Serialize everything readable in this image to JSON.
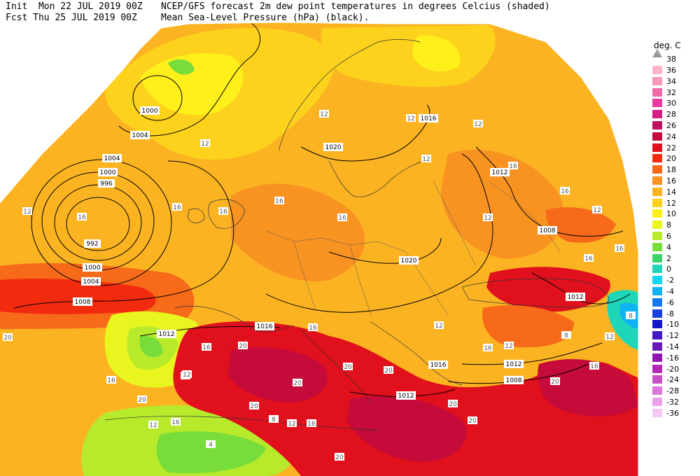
{
  "header": {
    "line1_left": "Init  Mon 22 JUL 2019 00Z",
    "line1_right": "NCEP/GFS forecast 2m dew point temperatures in degrees Celcius (shaded)",
    "line2_left": "Fcst Thu 25 JUL 2019 00Z",
    "line2_right": "Mean Sea-Level Pressure (hPa) (black)."
  },
  "legend": {
    "title": "deg. C",
    "top_label": "38",
    "bins": [
      {
        "label": "36",
        "color": "#ffb3c6"
      },
      {
        "label": "34",
        "color": "#f79ab8"
      },
      {
        "label": "32",
        "color": "#f06aa8"
      },
      {
        "label": "30",
        "color": "#e83aa0"
      },
      {
        "label": "28",
        "color": "#d81c86"
      },
      {
        "label": "26",
        "color": "#bf0f62"
      },
      {
        "label": "24",
        "color": "#c40b3a"
      },
      {
        "label": "22",
        "color": "#e0101c"
      },
      {
        "label": "20",
        "color": "#f22a0e"
      },
      {
        "label": "18",
        "color": "#f66a1a"
      },
      {
        "label": "16",
        "color": "#f89322"
      },
      {
        "label": "14",
        "color": "#fbb322"
      },
      {
        "label": "12",
        "color": "#fdd21c"
      },
      {
        "label": "10",
        "color": "#fff01c"
      },
      {
        "label": "8",
        "color": "#e8f51e"
      },
      {
        "label": "6",
        "color": "#b8ea2c"
      },
      {
        "label": "4",
        "color": "#78dc3a"
      },
      {
        "label": "2",
        "color": "#3cd468"
      },
      {
        "label": "0",
        "color": "#20d6b8"
      },
      {
        "label": "-2",
        "color": "#10d8f0"
      },
      {
        "label": "-4",
        "color": "#10b4f4"
      },
      {
        "label": "-6",
        "color": "#1478f0"
      },
      {
        "label": "-8",
        "color": "#1840e0"
      },
      {
        "label": "-10",
        "color": "#1414c8"
      },
      {
        "label": "-12",
        "color": "#4418c0"
      },
      {
        "label": "-14",
        "color": "#6a18b8"
      },
      {
        "label": "-16",
        "color": "#9018b0"
      },
      {
        "label": "-20",
        "color": "#b428b8"
      },
      {
        "label": "-24",
        "color": "#c850c8"
      },
      {
        "label": "-28",
        "color": "#dc78dc"
      },
      {
        "label": "-32",
        "color": "#eca0ec"
      },
      {
        "label": "-36",
        "color": "#f6c8f6"
      }
    ]
  },
  "map": {
    "isobar_labels": [
      {
        "text": "1000"
      },
      {
        "text": "1004"
      },
      {
        "text": "1004"
      },
      {
        "text": "1000"
      },
      {
        "text": "996"
      },
      {
        "text": "992"
      },
      {
        "text": "1000"
      },
      {
        "text": "1004"
      },
      {
        "text": "1008"
      },
      {
        "text": "1012"
      },
      {
        "text": "1016"
      },
      {
        "text": "1020"
      },
      {
        "text": "1016"
      },
      {
        "text": "1012"
      },
      {
        "text": "1008"
      },
      {
        "text": "1020"
      },
      {
        "text": "1012"
      },
      {
        "text": "1016"
      },
      {
        "text": "1012"
      },
      {
        "text": "1008"
      },
      {
        "text": "1012"
      }
    ],
    "dewpoint_labels": [
      {
        "text": "12"
      },
      {
        "text": "16"
      },
      {
        "text": "16"
      },
      {
        "text": "12"
      },
      {
        "text": "16"
      },
      {
        "text": "16"
      },
      {
        "text": "12"
      },
      {
        "text": "12"
      },
      {
        "text": "16"
      },
      {
        "text": "12"
      },
      {
        "text": "16"
      },
      {
        "text": "16"
      },
      {
        "text": "12"
      },
      {
        "text": "16"
      },
      {
        "text": "12"
      },
      {
        "text": "16"
      },
      {
        "text": "20"
      },
      {
        "text": "20"
      },
      {
        "text": "16"
      },
      {
        "text": "12"
      },
      {
        "text": "20"
      },
      {
        "text": "20"
      },
      {
        "text": "20"
      },
      {
        "text": "20"
      },
      {
        "text": "20"
      },
      {
        "text": "16"
      },
      {
        "text": "12"
      },
      {
        "text": "16"
      },
      {
        "text": "12"
      },
      {
        "text": "16"
      },
      {
        "text": "8"
      },
      {
        "text": "4"
      },
      {
        "text": "12"
      },
      {
        "text": "16"
      },
      {
        "text": "20"
      },
      {
        "text": "20"
      },
      {
        "text": "16"
      },
      {
        "text": "12"
      },
      {
        "text": "8"
      },
      {
        "text": "8"
      },
      {
        "text": "12"
      },
      {
        "text": "16"
      },
      {
        "text": "12"
      },
      {
        "text": "20"
      },
      {
        "text": "20"
      },
      {
        "text": "12"
      }
    ]
  }
}
